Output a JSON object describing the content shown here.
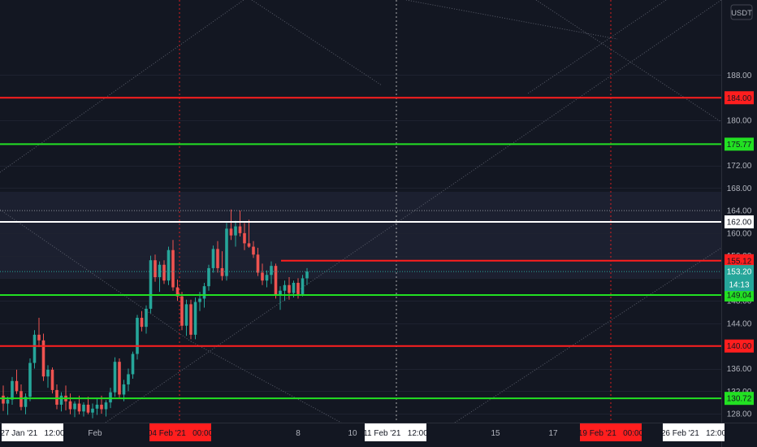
{
  "chart_data": {
    "type": "candlestick",
    "y_axis_unit": "USDT",
    "ylim": [
      127,
      197
    ],
    "y_ticks": [
      128.0,
      132.0,
      136.0,
      140.0,
      144.0,
      148.0,
      152.0,
      156.0,
      160.0,
      164.0,
      168.0,
      172.0,
      176.0,
      180.0,
      184.0,
      188.0
    ],
    "x_labels": [
      {
        "text": "27 Jan '21   12:00",
        "boxed": true,
        "box": "#ffffff",
        "fg": "#131722"
      },
      {
        "text": "Feb",
        "boxed": false
      },
      {
        "text": "04 Feb '21   00:00",
        "boxed": true,
        "box": "#ff1e1e",
        "fg": "#131722"
      },
      {
        "text": "8",
        "boxed": false
      },
      {
        "text": "10",
        "boxed": false
      },
      {
        "text": "11 Feb '21   12:00",
        "boxed": true,
        "box": "#ffffff",
        "fg": "#131722"
      },
      {
        "text": "15",
        "boxed": false
      },
      {
        "text": "17",
        "boxed": false
      },
      {
        "text": "19 Feb '21   00:00",
        "boxed": true,
        "box": "#ff1e1e",
        "fg": "#131722"
      },
      {
        "text": "26 Feb '21   12:00",
        "boxed": true,
        "box": "#ffffff",
        "fg": "#131722"
      }
    ],
    "horizontal_levels": [
      {
        "price": 184.0,
        "label": "184.00",
        "color": "#ff1e1e"
      },
      {
        "price": 175.77,
        "label": "175.77",
        "color": "#22e022"
      },
      {
        "price": 162.0,
        "label": "162.00",
        "color": "#ffffff"
      },
      {
        "price": 155.12,
        "label": "155.12",
        "color": "#ff1e1e"
      },
      {
        "price": 149.04,
        "label": "149.04",
        "color": "#22e022"
      },
      {
        "price": 140.0,
        "label": "140.00",
        "color": "#ff1e1e"
      },
      {
        "price": 130.72,
        "label": "130.72",
        "color": "#22e022"
      }
    ],
    "last_price": {
      "price": 153.2,
      "label": "153.20",
      "countdown": "14:13",
      "color": "#26a69a"
    },
    "bull_color": "#26a69a",
    "bear_color": "#ef5350",
    "candles": [
      [
        131.2,
        133.0,
        128.5,
        129.8
      ],
      [
        129.8,
        131.0,
        127.8,
        130.5
      ],
      [
        130.5,
        134.5,
        129.6,
        133.8
      ],
      [
        133.8,
        135.8,
        131.5,
        132.0
      ],
      [
        132.0,
        133.2,
        128.6,
        129.2
      ],
      [
        129.2,
        131.6,
        127.9,
        131.0
      ],
      [
        131.0,
        137.8,
        130.2,
        137.0
      ],
      [
        137.0,
        142.8,
        136.0,
        142.0
      ],
      [
        142.0,
        145.0,
        139.8,
        141.0
      ],
      [
        141.0,
        142.2,
        133.8,
        134.6
      ],
      [
        134.6,
        136.6,
        132.6,
        135.8
      ],
      [
        135.8,
        136.2,
        131.6,
        132.2
      ],
      [
        132.2,
        133.2,
        128.8,
        129.6
      ],
      [
        129.6,
        131.8,
        128.4,
        131.2
      ],
      [
        131.2,
        133.0,
        128.6,
        130.2
      ],
      [
        130.2,
        131.6,
        127.9,
        128.8
      ],
      [
        128.8,
        130.2,
        127.4,
        129.8
      ],
      [
        129.8,
        131.2,
        127.9,
        128.4
      ],
      [
        128.4,
        130.0,
        127.5,
        129.6
      ],
      [
        129.6,
        131.0,
        127.9,
        128.2
      ],
      [
        128.2,
        129.8,
        127.2,
        128.9
      ],
      [
        128.9,
        130.8,
        127.8,
        129.6
      ],
      [
        129.6,
        131.2,
        128.0,
        128.8
      ],
      [
        128.8,
        130.4,
        127.5,
        130.0
      ],
      [
        130.0,
        132.6,
        129.0,
        131.8
      ],
      [
        131.8,
        138.0,
        131.0,
        137.2
      ],
      [
        137.2,
        137.8,
        130.6,
        131.4
      ],
      [
        131.4,
        134.0,
        130.2,
        133.2
      ],
      [
        133.2,
        136.0,
        132.0,
        135.0
      ],
      [
        135.0,
        139.0,
        134.2,
        138.6
      ],
      [
        138.6,
        145.5,
        137.6,
        145.0
      ],
      [
        145.0,
        146.2,
        142.6,
        143.4
      ],
      [
        143.4,
        147.2,
        142.2,
        146.6
      ],
      [
        146.6,
        156.0,
        145.8,
        155.2
      ],
      [
        155.2,
        156.2,
        151.4,
        152.2
      ],
      [
        152.2,
        155.0,
        149.6,
        154.4
      ],
      [
        154.4,
        155.2,
        151.0,
        151.6
      ],
      [
        151.6,
        157.6,
        150.8,
        157.0
      ],
      [
        157.0,
        158.8,
        149.8,
        150.4
      ],
      [
        150.4,
        151.8,
        148.0,
        148.8
      ],
      [
        148.8,
        149.6,
        142.8,
        143.6
      ],
      [
        143.6,
        148.2,
        141.8,
        147.4
      ],
      [
        147.4,
        148.2,
        141.2,
        142.0
      ],
      [
        142.0,
        148.6,
        141.2,
        147.8
      ],
      [
        147.8,
        149.6,
        146.2,
        148.4
      ],
      [
        148.4,
        151.2,
        146.8,
        150.6
      ],
      [
        150.6,
        154.4,
        149.8,
        153.8
      ],
      [
        153.8,
        157.8,
        153.0,
        157.2
      ],
      [
        157.2,
        158.6,
        153.0,
        153.8
      ],
      [
        153.8,
        156.8,
        151.6,
        152.4
      ],
      [
        152.4,
        161.8,
        151.6,
        160.8
      ],
      [
        160.8,
        164.2,
        158.8,
        159.6
      ],
      [
        159.6,
        162.2,
        157.6,
        161.2
      ],
      [
        161.2,
        164.0,
        159.4,
        160.0
      ],
      [
        160.0,
        161.8,
        157.0,
        158.2
      ],
      [
        158.2,
        162.4,
        157.4,
        157.6
      ],
      [
        157.6,
        158.6,
        155.6,
        156.2
      ],
      [
        156.2,
        157.4,
        152.4,
        153.0
      ],
      [
        153.0,
        154.6,
        150.8,
        151.6
      ],
      [
        151.6,
        153.4,
        150.4,
        152.6
      ],
      [
        152.6,
        155.0,
        151.0,
        154.2
      ],
      [
        154.2,
        154.6,
        148.4,
        149.0
      ],
      [
        149.0,
        150.6,
        146.4,
        149.8
      ],
      [
        149.8,
        151.6,
        148.0,
        150.8
      ],
      [
        150.8,
        152.2,
        148.2,
        149.4
      ],
      [
        149.4,
        151.6,
        148.6,
        151.2
      ],
      [
        151.2,
        152.0,
        148.4,
        149.2
      ],
      [
        149.2,
        152.6,
        148.8,
        152.0
      ],
      [
        152.0,
        153.8,
        150.8,
        153.2
      ]
    ]
  }
}
